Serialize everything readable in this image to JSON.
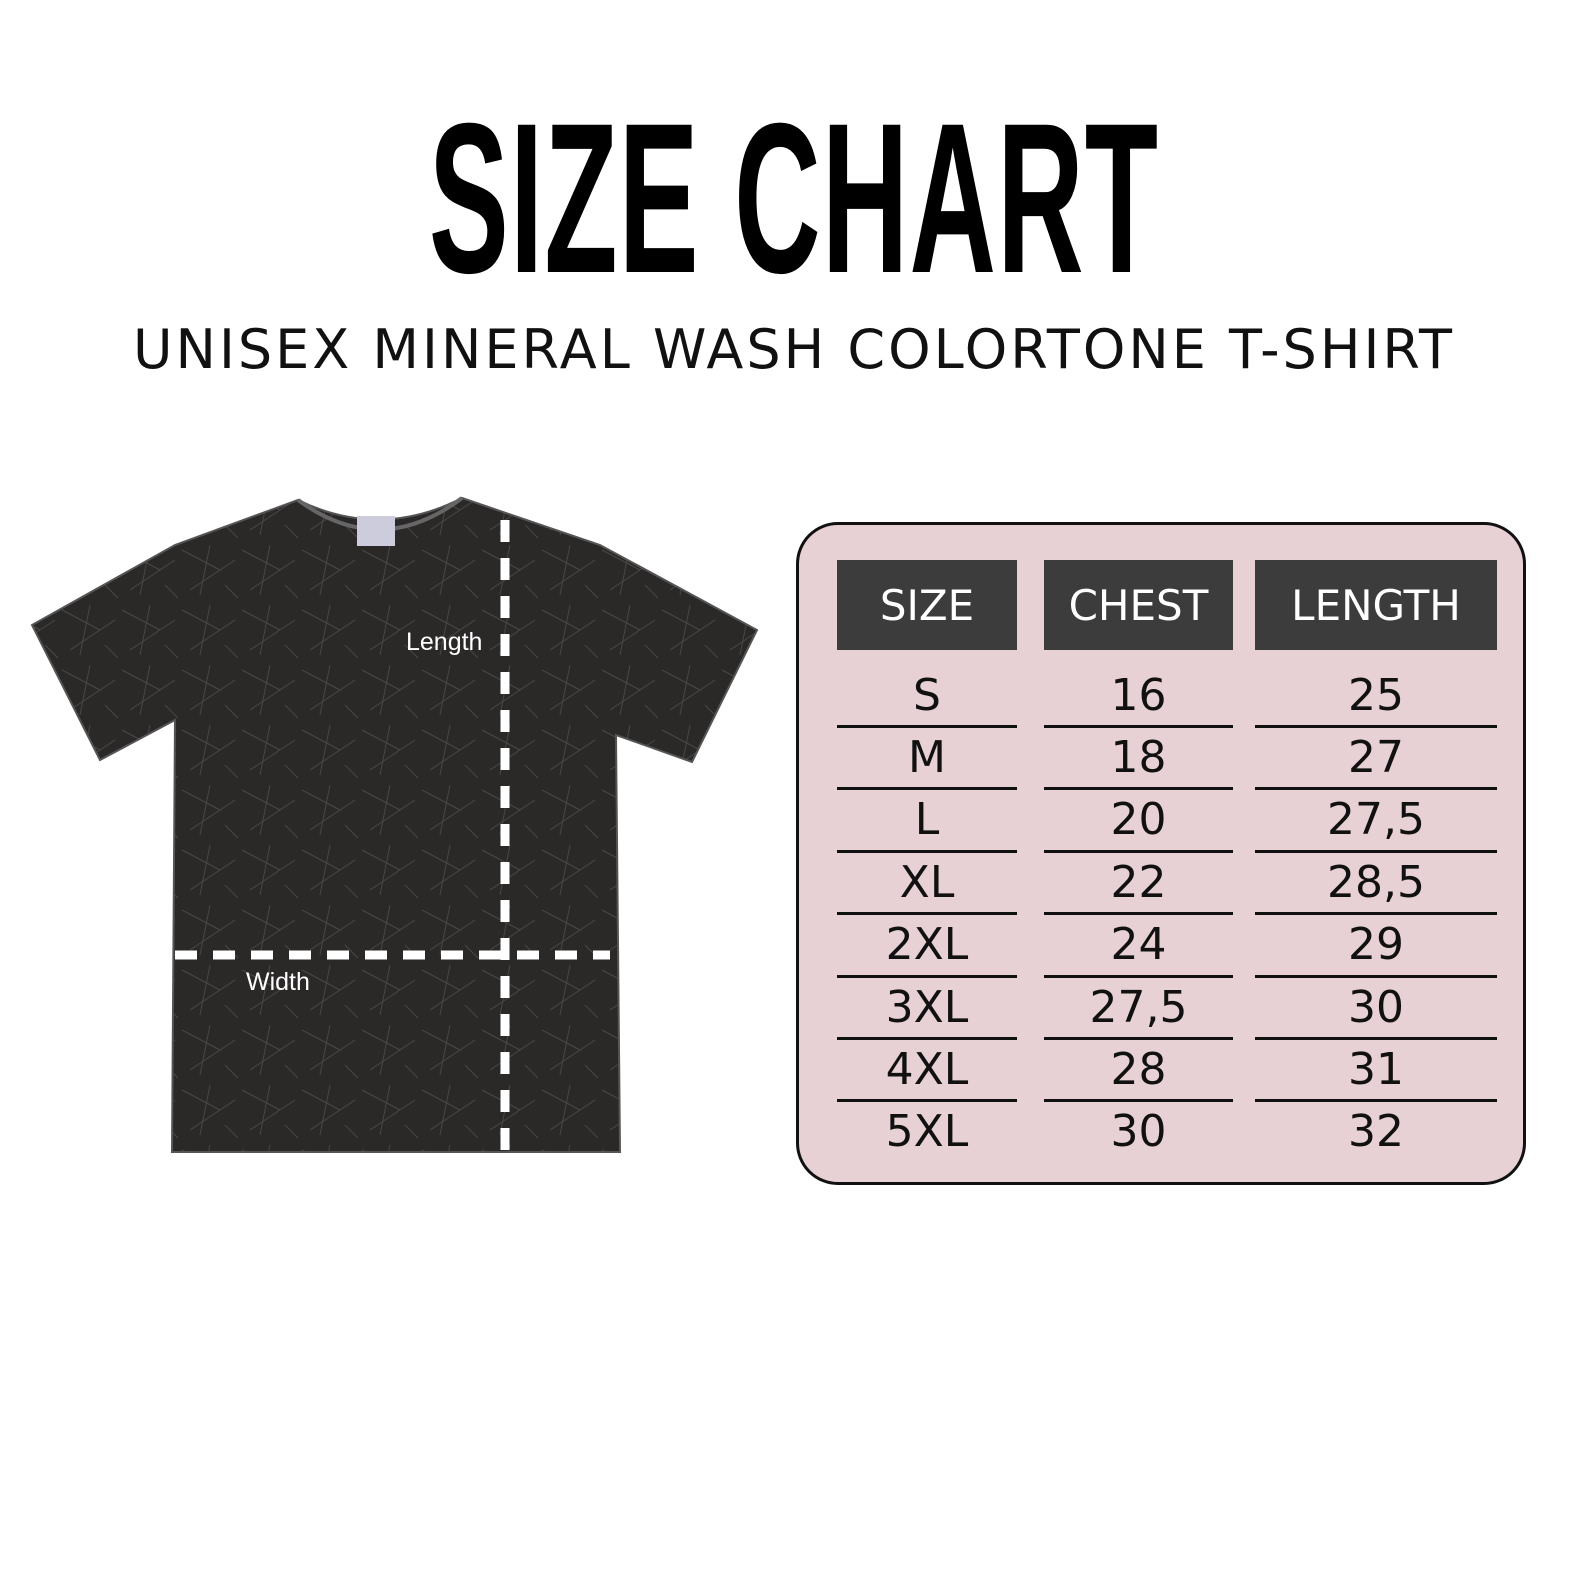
{
  "title": "SIZE CHART",
  "subtitle": "UNISEX MINERAL WASH COLORTONE T-SHIRT",
  "diagram": {
    "length_label": "Length",
    "width_label": "Width",
    "shirt_color": "#2a2727"
  },
  "table": {
    "background": "#e7d1d5",
    "header_color": "#3c3c3c",
    "headers": [
      "SIZE",
      "CHEST",
      "LENGTH"
    ],
    "rows": [
      [
        "S",
        "16",
        "25"
      ],
      [
        "M",
        "18",
        "27"
      ],
      [
        "L",
        "20",
        "27,5"
      ],
      [
        "XL",
        "22",
        "28,5"
      ],
      [
        "2XL",
        "24",
        "29"
      ],
      [
        "3XL",
        "27,5",
        "30"
      ],
      [
        "4XL",
        "28",
        "31"
      ],
      [
        "5XL",
        "30",
        "32"
      ]
    ]
  }
}
